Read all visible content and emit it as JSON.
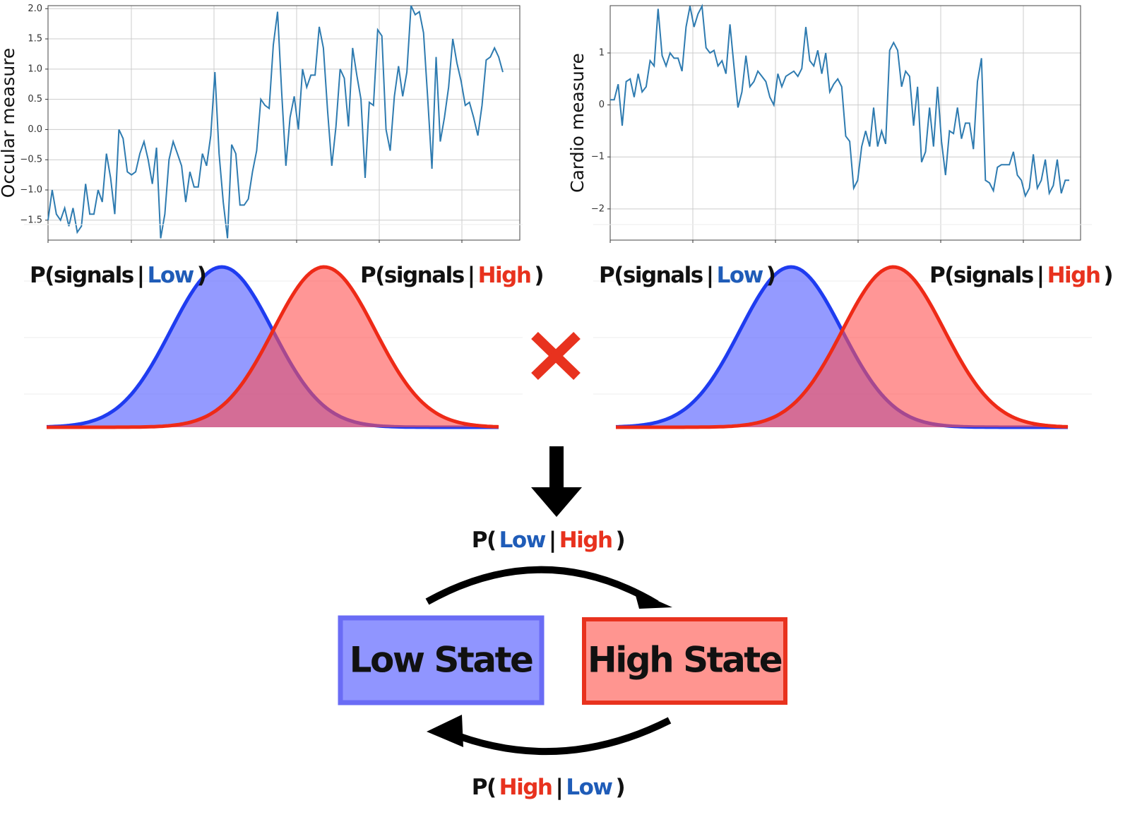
{
  "chart_data": [
    {
      "type": "line",
      "ylabel": "Occular measure",
      "color": "#2e7bb0",
      "grid": true,
      "ylim": [
        -1.83,
        2.05
      ],
      "yticks": [
        {
          "value": -1.5,
          "label": "−1.5"
        },
        {
          "value": -1.0,
          "label": "−1.0"
        },
        {
          "value": -0.5,
          "label": "−0.5"
        },
        {
          "value": 0.0,
          "label": "0.0"
        },
        {
          "value": 0.5,
          "label": "0.5"
        },
        {
          "value": 1.0,
          "label": "1.0"
        },
        {
          "value": 1.5,
          "label": "1.5"
        },
        {
          "value": 2.0,
          "label": "2.0"
        }
      ],
      "values": [
        -1.5,
        -1.0,
        -1.4,
        -1.5,
        -1.3,
        -1.6,
        -1.3,
        -1.7,
        -1.6,
        -0.9,
        -1.4,
        -1.4,
        -1.0,
        -1.2,
        -0.4,
        -0.8,
        -1.4,
        0.0,
        -0.15,
        -0.7,
        -0.75,
        -0.7,
        -0.4,
        -0.2,
        -0.5,
        -0.9,
        -0.3,
        -1.8,
        -1.4,
        -0.5,
        -0.2,
        -0.4,
        -0.6,
        -1.2,
        -0.7,
        -0.95,
        -0.95,
        -0.4,
        -0.6,
        -0.1,
        0.95,
        -0.4,
        -1.2,
        -1.8,
        -0.25,
        -0.4,
        -1.25,
        -1.25,
        -1.15,
        -0.7,
        -0.35,
        0.5,
        0.4,
        0.35,
        1.4,
        1.95,
        0.6,
        -0.6,
        0.2,
        0.55,
        0.0,
        1.0,
        0.7,
        0.9,
        0.9,
        1.7,
        1.35,
        0.3,
        -0.6,
        0.05,
        1.0,
        0.85,
        0.05,
        1.35,
        0.9,
        0.5,
        -0.8,
        0.45,
        0.4,
        1.65,
        1.55,
        0.0,
        -0.35,
        0.55,
        1.05,
        0.55,
        0.95,
        2.05,
        1.9,
        1.95,
        1.6,
        0.5,
        -0.65,
        1.2,
        -0.2,
        0.2,
        0.7,
        1.5,
        1.1,
        0.8,
        0.4,
        0.45,
        0.2,
        -0.1,
        0.4,
        1.15,
        1.2,
        1.35,
        1.2,
        0.95
      ]
    },
    {
      "type": "line",
      "ylabel": "Cardio measure",
      "color": "#2e7bb0",
      "grid": true,
      "ylim": [
        -2.6,
        1.91
      ],
      "yticks": [
        {
          "value": -2,
          "label": "−2"
        },
        {
          "value": -1,
          "label": "−1"
        },
        0,
        1
      ],
      "values": [
        0.1,
        0.1,
        0.4,
        -0.4,
        0.45,
        0.5,
        0.15,
        0.6,
        0.25,
        0.35,
        0.85,
        0.75,
        1.85,
        0.95,
        0.75,
        1.0,
        0.9,
        0.9,
        0.65,
        1.5,
        1.9,
        1.5,
        1.75,
        1.9,
        1.1,
        1.0,
        1.05,
        0.75,
        0.85,
        0.6,
        1.55,
        0.75,
        -0.05,
        0.25,
        0.95,
        0.35,
        0.45,
        0.65,
        0.55,
        0.45,
        0.15,
        0.0,
        0.6,
        0.35,
        0.55,
        0.6,
        0.65,
        0.55,
        0.7,
        1.5,
        0.85,
        0.75,
        1.05,
        0.6,
        1.0,
        0.25,
        0.4,
        0.5,
        0.35,
        -0.6,
        -0.7,
        -1.6,
        -1.45,
        -0.8,
        -0.5,
        -0.8,
        -0.05,
        -0.8,
        -0.5,
        -0.75,
        1.05,
        1.2,
        1.05,
        0.35,
        0.65,
        0.55,
        -0.4,
        0.35,
        -1.1,
        -0.9,
        -0.05,
        -0.8,
        0.35,
        -0.7,
        -1.35,
        -0.5,
        -0.55,
        -0.05,
        -0.65,
        -0.35,
        -0.35,
        -0.85,
        0.45,
        0.9,
        -1.45,
        -1.5,
        -1.65,
        -1.2,
        -1.15,
        -1.15,
        -1.15,
        -0.9,
        -1.35,
        -1.45,
        -1.75,
        -1.6,
        -0.95,
        -1.6,
        -1.45,
        -1.05,
        -1.7,
        -1.55,
        -1.05,
        -1.7,
        -1.45,
        -1.45
      ]
    }
  ],
  "likelihood_labels": [
    {
      "parts": [
        "P(signals",
        "|",
        "Low",
        ")"
      ],
      "color": "#1f5cb8"
    },
    {
      "parts": [
        "P(signals",
        "|",
        "High",
        ")"
      ],
      "color": "#e8321e"
    },
    {
      "parts": [
        "P(signals",
        "|",
        "Low",
        ")"
      ],
      "color": "#1f5cb8"
    },
    {
      "parts": [
        "P(signals",
        "|",
        "High",
        ")"
      ],
      "color": "#e8321e"
    }
  ],
  "transitions": [
    {
      "parts": [
        "P(",
        "Low",
        "|",
        "High",
        ")"
      ],
      "colors": [
        "#111",
        "#1f5cb8",
        "#111",
        "#e8321e",
        "#111"
      ]
    },
    {
      "parts": [
        "P(",
        "High",
        "|",
        "Low",
        ")"
      ],
      "colors": [
        "#111",
        "#e8321e",
        "#111",
        "#1f5cb8",
        "#111"
      ]
    }
  ],
  "states": [
    "Low State",
    "High State"
  ]
}
